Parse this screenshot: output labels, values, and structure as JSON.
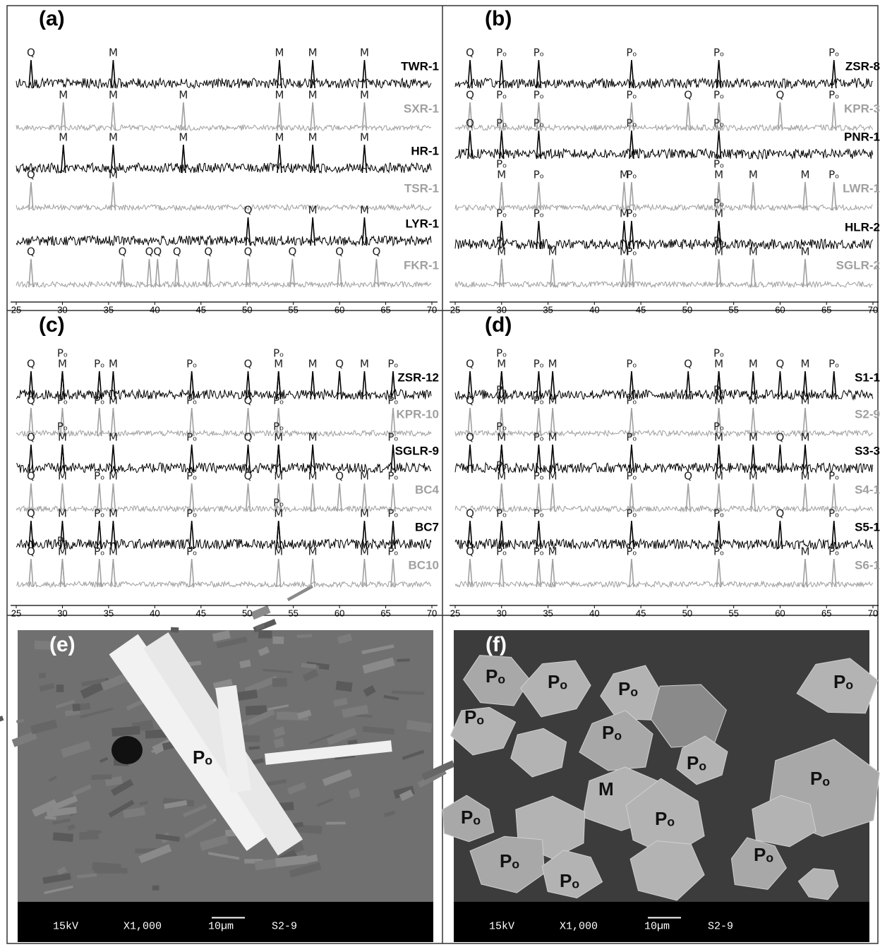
{
  "chart_data": [
    {
      "type": "xrd",
      "title": "(a)",
      "xlim": [
        25,
        70
      ],
      "xticks": [
        25,
        30,
        35,
        40,
        45,
        50,
        55,
        60,
        65,
        70
      ],
      "series": [
        {
          "name": "TWR-1",
          "color": "#000000",
          "peaks": [
            [
              26.6,
              "Q"
            ],
            [
              35.5,
              "M"
            ],
            [
              53.5,
              "M"
            ],
            [
              57.1,
              "M"
            ],
            [
              62.7,
              "M"
            ]
          ]
        },
        {
          "name": "SXR-1",
          "color": "#a0a0a0",
          "peaks": [
            [
              30.1,
              "M"
            ],
            [
              35.5,
              "M"
            ],
            [
              43.1,
              "M"
            ],
            [
              53.5,
              "M"
            ],
            [
              57.1,
              "M"
            ],
            [
              62.7,
              "M"
            ]
          ]
        },
        {
          "name": "HR-1",
          "color": "#000000",
          "peaks": [
            [
              30.1,
              "M"
            ],
            [
              35.5,
              "M"
            ],
            [
              43.1,
              "M"
            ],
            [
              53.5,
              "M"
            ],
            [
              57.1,
              "M"
            ],
            [
              62.7,
              "M"
            ]
          ]
        },
        {
          "name": "TSR-1",
          "color": "#a0a0a0",
          "peaks": [
            [
              26.6,
              "Q"
            ],
            [
              35.5,
              "M"
            ]
          ]
        },
        {
          "name": "LYR-1",
          "color": "#000000",
          "peaks": [
            [
              50.1,
              "Q"
            ],
            [
              57.1,
              "M"
            ],
            [
              62.7,
              "M"
            ]
          ]
        },
        {
          "name": "FKR-1",
          "color": "#a0a0a0",
          "peaks": [
            [
              26.6,
              "Q"
            ],
            [
              36.5,
              "Q"
            ],
            [
              39.4,
              "Q"
            ],
            [
              40.3,
              "Q"
            ],
            [
              42.4,
              "Q"
            ],
            [
              45.8,
              "Q"
            ],
            [
              50.1,
              "Q"
            ],
            [
              54.9,
              "Q"
            ],
            [
              60.0,
              "Q"
            ],
            [
              64.0,
              "Q"
            ]
          ]
        }
      ]
    },
    {
      "type": "xrd",
      "title": "(b)",
      "xlim": [
        25,
        70
      ],
      "xticks": [
        25,
        30,
        35,
        40,
        45,
        50,
        55,
        60,
        65,
        70
      ],
      "series": [
        {
          "name": "ZSR-8",
          "color": "#000000",
          "peaks": [
            [
              26.6,
              "Q"
            ],
            [
              30.0,
              "Pₒ"
            ],
            [
              34.0,
              "Pₒ"
            ],
            [
              44.0,
              "Pₒ"
            ],
            [
              53.4,
              "Pₒ"
            ],
            [
              65.8,
              "Pₒ"
            ]
          ]
        },
        {
          "name": "KPR-3",
          "color": "#a0a0a0",
          "peaks": [
            [
              26.6,
              "Q"
            ],
            [
              30.0,
              "Pₒ"
            ],
            [
              34.0,
              "Pₒ"
            ],
            [
              44.0,
              "Pₒ"
            ],
            [
              50.1,
              "Q"
            ],
            [
              53.4,
              "Pₒ"
            ],
            [
              60.0,
              "Q"
            ],
            [
              65.8,
              "Pₒ"
            ]
          ]
        },
        {
          "name": "PNR-1",
          "color": "#000000",
          "peaks": [
            [
              26.6,
              "Q"
            ],
            [
              30.0,
              "Pₒ"
            ],
            [
              34.0,
              "Pₒ"
            ],
            [
              44.0,
              "Pₒ"
            ],
            [
              53.4,
              "Pₒ"
            ]
          ]
        },
        {
          "name": "LWR-1",
          "color": "#a0a0a0",
          "peaks": [
            [
              30.0,
              "M"
            ],
            [
              30.0,
              "Pₒ"
            ],
            [
              34.0,
              "Pₒ"
            ],
            [
              43.2,
              "M"
            ],
            [
              44.0,
              "Pₒ"
            ],
            [
              53.4,
              "M"
            ],
            [
              53.4,
              "Pₒ"
            ],
            [
              57.1,
              "M"
            ],
            [
              62.7,
              "M"
            ],
            [
              65.8,
              "Pₒ"
            ]
          ]
        },
        {
          "name": "HLR-2",
          "color": "#000000",
          "peaks": [
            [
              30.0,
              "Pₒ"
            ],
            [
              34.0,
              "Pₒ"
            ],
            [
              43.2,
              "M"
            ],
            [
              44.0,
              "Pₒ"
            ],
            [
              53.4,
              "M"
            ],
            [
              53.4,
              "Pₒ"
            ]
          ]
        },
        {
          "name": "SGLR-2",
          "color": "#a0a0a0",
          "peaks": [
            [
              30.0,
              "M"
            ],
            [
              30.0,
              "Pₒ"
            ],
            [
              35.5,
              "M"
            ],
            [
              43.2,
              "M"
            ],
            [
              44.0,
              "Pₒ"
            ],
            [
              53.4,
              "M"
            ],
            [
              53.4,
              "Pₒ"
            ],
            [
              57.1,
              "M"
            ],
            [
              62.7,
              "M"
            ]
          ]
        }
      ]
    },
    {
      "type": "xrd",
      "title": "(c)",
      "xlim": [
        25,
        70
      ],
      "xticks": [
        25,
        30,
        35,
        40,
        45,
        50,
        55,
        60,
        65,
        70
      ],
      "series": [
        {
          "name": "ZSR-12",
          "color": "#000000",
          "peaks": [
            [
              26.6,
              "Q"
            ],
            [
              30.0,
              "M"
            ],
            [
              30.0,
              "Pₒ"
            ],
            [
              34.0,
              "Pₒ"
            ],
            [
              35.5,
              "M"
            ],
            [
              44.0,
              "Pₒ"
            ],
            [
              50.1,
              "Q"
            ],
            [
              53.4,
              "M"
            ],
            [
              53.4,
              "Pₒ"
            ],
            [
              57.1,
              "M"
            ],
            [
              60.0,
              "Q"
            ],
            [
              62.7,
              "M"
            ],
            [
              65.8,
              "Pₒ"
            ]
          ]
        },
        {
          "name": "KPR-10",
          "color": "#a0a0a0",
          "peaks": [
            [
              26.6,
              "Q"
            ],
            [
              30.0,
              "Pₒ"
            ],
            [
              34.0,
              "Pₒ"
            ],
            [
              35.5,
              "M"
            ],
            [
              44.0,
              "Pₒ"
            ],
            [
              50.1,
              "Q"
            ],
            [
              53.4,
              "Pₒ"
            ],
            [
              65.8,
              "Pₒ"
            ]
          ]
        },
        {
          "name": "SGLR-9",
          "color": "#000000",
          "peaks": [
            [
              26.6,
              "Q"
            ],
            [
              30.0,
              "M"
            ],
            [
              30.0,
              "Pₒ"
            ],
            [
              35.5,
              "M"
            ],
            [
              44.0,
              "Pₒ"
            ],
            [
              50.1,
              "Q"
            ],
            [
              53.4,
              "M"
            ],
            [
              53.4,
              "Pₒ"
            ],
            [
              57.1,
              "M"
            ],
            [
              65.8,
              "Pₒ"
            ]
          ]
        },
        {
          "name": "BC4",
          "color": "#a0a0a0",
          "peaks": [
            [
              26.6,
              "Q"
            ],
            [
              30.0,
              "M"
            ],
            [
              34.0,
              "Pₒ"
            ],
            [
              35.5,
              "M"
            ],
            [
              44.0,
              "Pₒ"
            ],
            [
              50.1,
              "Q"
            ],
            [
              53.4,
              "M"
            ],
            [
              57.1,
              "M"
            ],
            [
              60.0,
              "Q"
            ],
            [
              62.7,
              "M"
            ],
            [
              65.8,
              "Pₒ"
            ]
          ]
        },
        {
          "name": "BC7",
          "color": "#000000",
          "peaks": [
            [
              26.6,
              "Q"
            ],
            [
              30.0,
              "M"
            ],
            [
              34.0,
              "Pₒ"
            ],
            [
              35.5,
              "M"
            ],
            [
              44.0,
              "Pₒ"
            ],
            [
              53.4,
              "M"
            ],
            [
              53.4,
              "Pₒ"
            ],
            [
              62.7,
              "M"
            ],
            [
              65.8,
              "Pₒ"
            ]
          ]
        },
        {
          "name": "BC10",
          "color": "#a0a0a0",
          "peaks": [
            [
              26.6,
              "Q"
            ],
            [
              30.0,
              "M"
            ],
            [
              30.0,
              "Pₒ"
            ],
            [
              34.0,
              "Pₒ"
            ],
            [
              35.5,
              "M"
            ],
            [
              44.0,
              "Pₒ"
            ],
            [
              53.4,
              "M"
            ],
            [
              57.1,
              "M"
            ],
            [
              62.7,
              "M"
            ],
            [
              65.8,
              "Pₒ"
            ]
          ]
        }
      ]
    },
    {
      "type": "xrd",
      "title": "(d)",
      "xlim": [
        25,
        70
      ],
      "xticks": [
        25,
        30,
        35,
        40,
        45,
        50,
        55,
        60,
        65,
        70
      ],
      "series": [
        {
          "name": "S1-1",
          "color": "#000000",
          "peaks": [
            [
              26.6,
              "Q"
            ],
            [
              30.0,
              "M"
            ],
            [
              30.0,
              "Pₒ"
            ],
            [
              34.0,
              "Pₒ"
            ],
            [
              35.5,
              "M"
            ],
            [
              44.0,
              "Pₒ"
            ],
            [
              50.1,
              "Q"
            ],
            [
              53.4,
              "M"
            ],
            [
              53.4,
              "Pₒ"
            ],
            [
              57.1,
              "M"
            ],
            [
              60.0,
              "Q"
            ],
            [
              62.7,
              "M"
            ],
            [
              65.8,
              "Pₒ"
            ]
          ]
        },
        {
          "name": "S2-9",
          "color": "#a0a0a0",
          "peaks": [
            [
              26.6,
              "Q"
            ],
            [
              30.0,
              "M"
            ],
            [
              30.0,
              "Pₒ"
            ],
            [
              34.0,
              "Pₒ"
            ],
            [
              35.5,
              "M"
            ],
            [
              44.0,
              "Pₒ"
            ],
            [
              53.4,
              "M"
            ],
            [
              53.4,
              "Pₒ"
            ],
            [
              57.1,
              "M"
            ],
            [
              62.7,
              "M"
            ]
          ]
        },
        {
          "name": "S3-3",
          "color": "#000000",
          "peaks": [
            [
              26.6,
              "Q"
            ],
            [
              30.0,
              "M"
            ],
            [
              30.0,
              "Pₒ"
            ],
            [
              34.0,
              "Pₒ"
            ],
            [
              35.5,
              "M"
            ],
            [
              44.0,
              "Pₒ"
            ],
            [
              53.4,
              "M"
            ],
            [
              53.4,
              "Pₒ"
            ],
            [
              57.1,
              "M"
            ],
            [
              60.0,
              "Q"
            ],
            [
              62.7,
              "M"
            ]
          ]
        },
        {
          "name": "S4-1",
          "color": "#a0a0a0",
          "peaks": [
            [
              30.0,
              "M"
            ],
            [
              30.0,
              "Pₒ"
            ],
            [
              34.0,
              "Pₒ"
            ],
            [
              35.5,
              "M"
            ],
            [
              44.0,
              "Pₒ"
            ],
            [
              50.1,
              "Q"
            ],
            [
              53.4,
              "M"
            ],
            [
              57.1,
              "M"
            ],
            [
              62.7,
              "M"
            ],
            [
              65.8,
              "Pₒ"
            ]
          ]
        },
        {
          "name": "S5-1",
          "color": "#000000",
          "peaks": [
            [
              26.6,
              "Q"
            ],
            [
              30.0,
              "Pₒ"
            ],
            [
              34.0,
              "Pₒ"
            ],
            [
              44.0,
              "Pₒ"
            ],
            [
              53.4,
              "Pₒ"
            ],
            [
              60.0,
              "Q"
            ],
            [
              65.8,
              "Pₒ"
            ]
          ]
        },
        {
          "name": "S6-1",
          "color": "#a0a0a0",
          "peaks": [
            [
              26.6,
              "Q"
            ],
            [
              30.0,
              "Pₒ"
            ],
            [
              34.0,
              "Pₒ"
            ],
            [
              35.5,
              "M"
            ],
            [
              44.0,
              "Pₒ"
            ],
            [
              53.4,
              "Pₒ"
            ],
            [
              62.7,
              "M"
            ],
            [
              65.8,
              "Pₒ"
            ]
          ]
        }
      ]
    }
  ],
  "images": [
    {
      "label": "(e)",
      "info": [
        "15kV",
        "X1,000",
        "10µm",
        "S2-9"
      ],
      "phases": [
        "Pₒ"
      ]
    },
    {
      "label": "(f)",
      "info": [
        "15kV",
        "X1,000",
        "10µm",
        "S2-9"
      ],
      "phases": [
        "Pₒ",
        "Pₒ",
        "Pₒ",
        "Pₒ",
        "Pₒ",
        "Pₒ",
        "Pₒ",
        "M",
        "Pₒ",
        "Pₒ",
        "Pₒ",
        "Pₒ",
        "Pₒ",
        "Pₒ"
      ]
    }
  ]
}
